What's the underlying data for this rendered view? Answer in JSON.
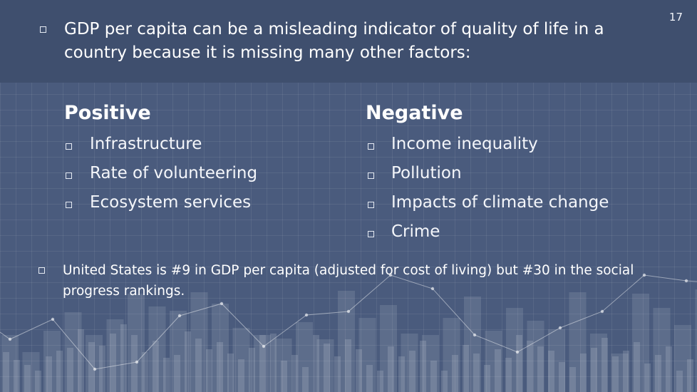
{
  "slide": {
    "page_number": "17",
    "intro": "GDP per capita can be a misleading indicator of quality of life in a country because it is missing many other factors:",
    "positive": {
      "heading": "Positive",
      "items": [
        "Infrastructure",
        "Rate of volunteering",
        "Ecosystem services"
      ]
    },
    "negative": {
      "heading": "Negative",
      "items": [
        "Income inequality",
        "Pollution",
        "Impacts of climate change",
        "Crime"
      ]
    },
    "note": "United States is #9 in GDP per capita (adjusted for cost of living) but #30 in the social progress rankings."
  },
  "colors": {
    "background": "#4a5b7d",
    "header_band": "#3f4f6e",
    "text": "#ffffff"
  }
}
